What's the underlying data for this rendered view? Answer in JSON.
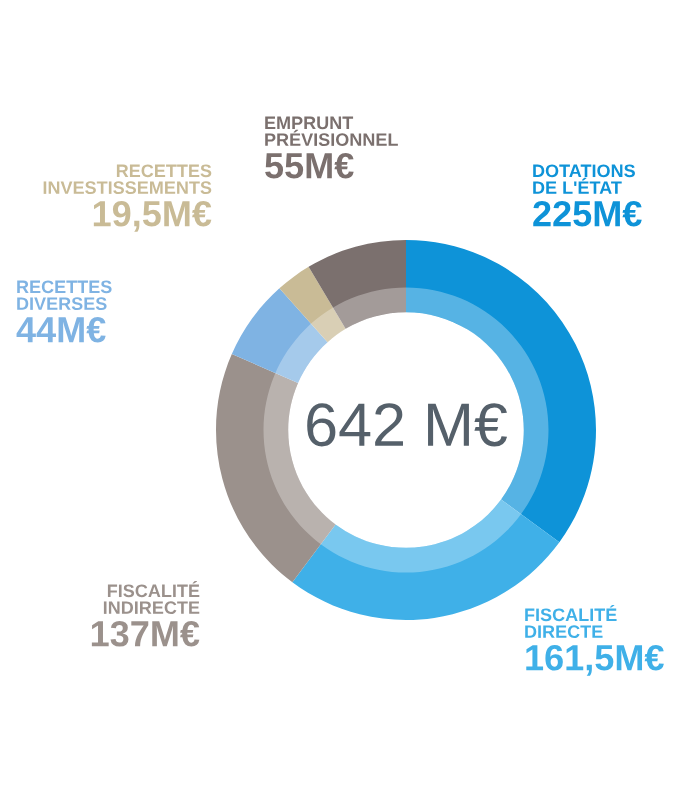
{
  "chart_data": {
    "type": "donut",
    "categories": [
      "DOTATIONS\nDE L'ÉTAT",
      "FISCALITÉ\nDIRECTE",
      "FISCALITÉ\nINDIRECTE",
      "RECETTES\nDIVERSES",
      "RECETTES\nINVESTISSEMENTS",
      "EMPRUNT\nPRÉVISIONNEL"
    ],
    "values": [
      225,
      161.5,
      137,
      44,
      19.5,
      55
    ],
    "value_labels": [
      "225M€",
      "161,5M€",
      "137M€",
      "44M€",
      "19,5M€",
      "55M€"
    ],
    "colors": [
      "#0e93d8",
      "#3fb0e8",
      "#9b918c",
      "#7fb3e3",
      "#c9bb96",
      "#7b706e"
    ],
    "annotations": [
      "642 M€"
    ],
    "legend": false
  }
}
